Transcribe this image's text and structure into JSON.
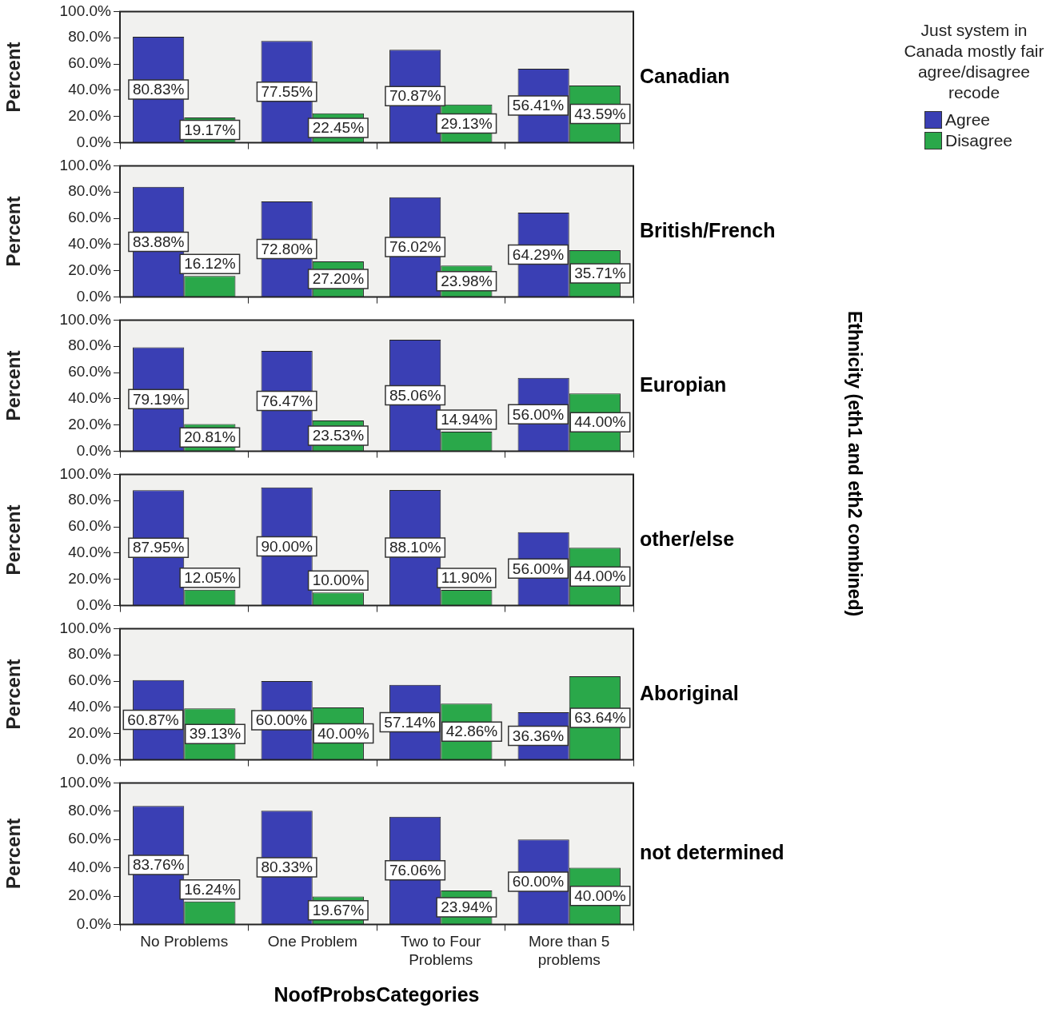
{
  "chart_data": [
    {
      "type": "bar",
      "title": "Canadian",
      "ylabel": "Percent",
      "ylim": [
        0,
        100
      ],
      "yticks": [
        {
          "value": 0,
          "label": "0.0%"
        },
        {
          "value": 20,
          "label": "20.0%"
        },
        {
          "value": 40,
          "label": "40.0%"
        },
        {
          "value": 60,
          "label": "60.0%"
        },
        {
          "value": 80,
          "label": "80.0%"
        },
        {
          "value": 100,
          "label": "100.0%"
        }
      ],
      "tick_labels": "y",
      "legend": "right",
      "legend_title": "Just system in Canada mostly fair agree/disagree recode",
      "annotations": [
        "Ethnicity (eth1 and eth2 combined)"
      ],
      "series": [
        {
          "name": "Agree",
          "color": "#3a3fb4",
          "values": [
            80.83,
            77.55,
            70.87,
            56.41
          ],
          "value_labels": [
            "80.83%",
            "77.55%",
            "70.87%",
            "56.41%"
          ]
        },
        {
          "name": "Disagree",
          "color": "#2aa84a",
          "values": [
            19.17,
            22.45,
            29.13,
            43.59
          ],
          "value_labels": [
            "19.17%",
            "22.45%",
            "29.13%",
            "43.59%"
          ]
        }
      ]
    },
    {
      "type": "bar",
      "title": "British/French",
      "ylabel": "Percent",
      "ylim": [
        0,
        100
      ],
      "yticks": [
        {
          "value": 0,
          "label": "0.0%"
        },
        {
          "value": 20,
          "label": "20.0%"
        },
        {
          "value": 40,
          "label": "40.0%"
        },
        {
          "value": 60,
          "label": "60.0%"
        },
        {
          "value": 80,
          "label": "80.0%"
        },
        {
          "value": 100,
          "label": "100.0%"
        }
      ],
      "tick_labels": "y",
      "series": [
        {
          "color": "#3a3fb4",
          "values": [
            83.88,
            72.8,
            76.02,
            64.29
          ],
          "value_labels": [
            "83.88%",
            "72.80%",
            "76.02%",
            "64.29%"
          ]
        },
        {
          "color": "#2aa84a",
          "values": [
            16.12,
            27.2,
            23.98,
            35.71
          ],
          "value_labels": [
            "16.12%",
            "27.20%",
            "23.98%",
            "35.71%"
          ]
        }
      ]
    },
    {
      "type": "bar",
      "title": "Europian",
      "ylabel": "Percent",
      "ylim": [
        0,
        100
      ],
      "yticks": [
        {
          "value": 0,
          "label": "0.0%"
        },
        {
          "value": 20,
          "label": "20.0%"
        },
        {
          "value": 40,
          "label": "40.0%"
        },
        {
          "value": 60,
          "label": "60.0%"
        },
        {
          "value": 80,
          "label": "80.0%"
        },
        {
          "value": 100,
          "label": "100.0%"
        }
      ],
      "tick_labels": "y",
      "series": [
        {
          "color": "#3a3fb4",
          "values": [
            79.19,
            76.47,
            85.06,
            56.0
          ],
          "value_labels": [
            "79.19%",
            "76.47%",
            "85.06%",
            "56.00%"
          ]
        },
        {
          "color": "#2aa84a",
          "values": [
            20.81,
            23.53,
            14.94,
            44.0
          ],
          "value_labels": [
            "20.81%",
            "23.53%",
            "14.94%",
            "44.00%"
          ]
        }
      ]
    },
    {
      "type": "bar",
      "title": "other/else",
      "ylabel": "Percent",
      "ylim": [
        0,
        100
      ],
      "yticks": [
        {
          "value": 0,
          "label": "0.0%"
        },
        {
          "value": 20,
          "label": "20.0%"
        },
        {
          "value": 40,
          "label": "40.0%"
        },
        {
          "value": 60,
          "label": "60.0%"
        },
        {
          "value": 80,
          "label": "80.0%"
        },
        {
          "value": 100,
          "label": "100.0%"
        }
      ],
      "tick_labels": "y",
      "series": [
        {
          "color": "#3a3fb4",
          "values": [
            87.95,
            90.0,
            88.1,
            56.0
          ],
          "value_labels": [
            "87.95%",
            "90.00%",
            "88.10%",
            "56.00%"
          ]
        },
        {
          "color": "#2aa84a",
          "values": [
            12.05,
            10.0,
            11.9,
            44.0
          ],
          "value_labels": [
            "12.05%",
            "10.00%",
            "11.90%",
            "44.00%"
          ]
        }
      ]
    },
    {
      "type": "bar",
      "title": "Aboriginal",
      "ylabel": "Percent",
      "ylim": [
        0,
        100
      ],
      "yticks": [
        {
          "value": 0,
          "label": "0.0%"
        },
        {
          "value": 20,
          "label": "20.0%"
        },
        {
          "value": 40,
          "label": "40.0%"
        },
        {
          "value": 60,
          "label": "60.0%"
        },
        {
          "value": 80,
          "label": "80.0%"
        },
        {
          "value": 100,
          "label": "100.0%"
        }
      ],
      "tick_labels": "y",
      "series": [
        {
          "color": "#3a3fb4",
          "values": [
            60.87,
            60.0,
            57.14,
            36.36
          ],
          "value_labels": [
            "60.87%",
            "60.00%",
            "57.14%",
            "36.36%"
          ]
        },
        {
          "color": "#2aa84a",
          "values": [
            39.13,
            40.0,
            42.86,
            63.64
          ],
          "value_labels": [
            "39.13%",
            "40.00%",
            "42.86%",
            "63.64%"
          ]
        }
      ]
    },
    {
      "type": "bar",
      "title": "not determined",
      "ylabel": "Percent",
      "xlabel": "NoofProbsCategories",
      "categories": [
        "No Problems",
        "One Problem",
        "Two to Four Problems",
        "More than 5 problems"
      ],
      "ylim": [
        0,
        100
      ],
      "yticks": [
        {
          "value": 0,
          "label": "0.0%"
        },
        {
          "value": 20,
          "label": "20.0%"
        },
        {
          "value": 40,
          "label": "40.0%"
        },
        {
          "value": 60,
          "label": "60.0%"
        },
        {
          "value": 80,
          "label": "80.0%"
        },
        {
          "value": 100,
          "label": "100.0%"
        }
      ],
      "series": [
        {
          "color": "#3a3fb4",
          "values": [
            83.76,
            80.33,
            76.06,
            60.0
          ],
          "value_labels": [
            "83.76%",
            "80.33%",
            "76.06%",
            "60.00%"
          ]
        },
        {
          "color": "#2aa84a",
          "values": [
            16.24,
            19.67,
            23.94,
            40.0
          ],
          "value_labels": [
            "16.24%",
            "19.67%",
            "23.94%",
            "40.00%"
          ]
        }
      ]
    }
  ]
}
